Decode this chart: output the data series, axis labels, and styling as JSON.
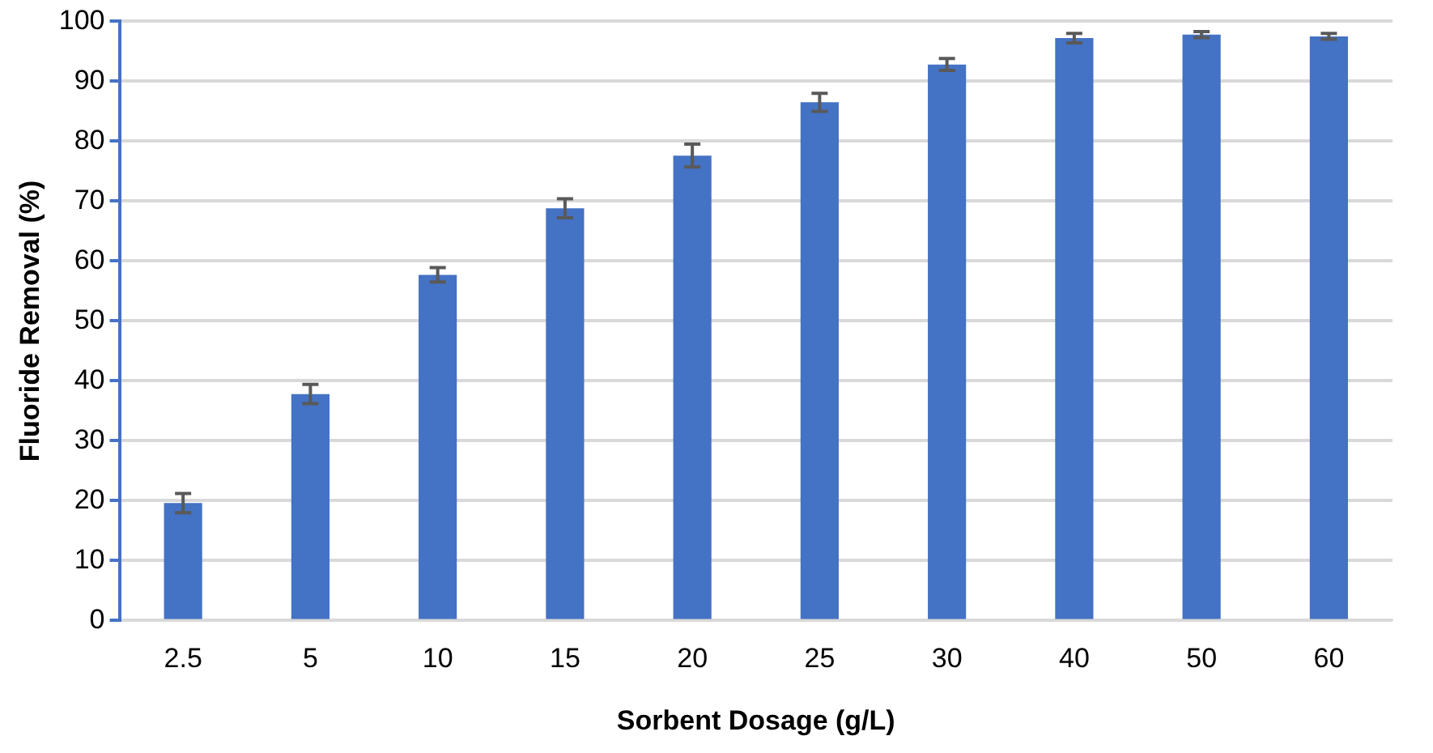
{
  "chart_data": {
    "type": "bar",
    "xlabel": "Sorbent Dosage (g/L)",
    "ylabel": "Fluoride Removal (%)",
    "categories": [
      "2.5",
      "5",
      "10",
      "15",
      "20",
      "25",
      "30",
      "40",
      "50",
      "60"
    ],
    "values": [
      19.6,
      37.8,
      57.7,
      68.8,
      77.6,
      86.5,
      92.8,
      97.2,
      97.8,
      97.5
    ],
    "errors": [
      1.6,
      1.6,
      1.2,
      1.6,
      1.9,
      1.5,
      1.0,
      0.8,
      0.5,
      0.5
    ],
    "color": "#4472c4",
    "ylim": [
      0,
      100
    ],
    "yticks": [
      0,
      10,
      20,
      30,
      40,
      50,
      60,
      70,
      80,
      90,
      100
    ],
    "grid": "y",
    "legend": false
  }
}
